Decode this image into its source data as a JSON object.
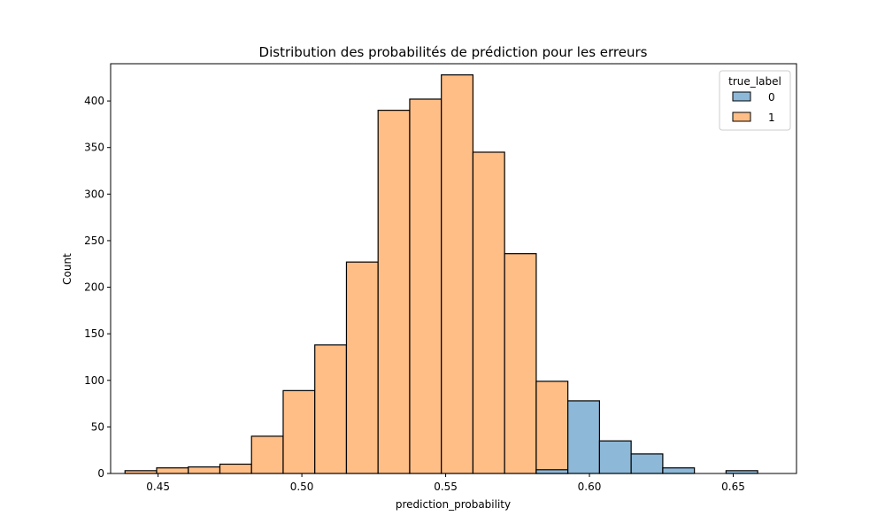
{
  "chart_data": {
    "type": "bar",
    "title": "Distribution des probabilités de prédiction pour les erreurs",
    "xlabel": "prediction_probability",
    "ylabel": "Count",
    "xlim": [
      0.4335,
      0.672
    ],
    "ylim": [
      0,
      440
    ],
    "xticks": [
      "0.45",
      "0.50",
      "0.55",
      "0.60",
      "0.65"
    ],
    "xtick_values": [
      0.45,
      0.5,
      0.55,
      0.6,
      0.65
    ],
    "yticks": [
      "0",
      "50",
      "100",
      "150",
      "200",
      "250",
      "300",
      "350",
      "400"
    ],
    "ytick_values": [
      0,
      50,
      100,
      150,
      200,
      250,
      300,
      350,
      400
    ],
    "grid": false,
    "legend": {
      "title": "true_label",
      "placement": "top-right",
      "entries": [
        {
          "label": "0",
          "color": "#8db8d8"
        },
        {
          "label": "1",
          "color": "#ffbe86"
        }
      ]
    },
    "bin_edges": [
      0.4385,
      0.4495,
      0.4605,
      0.4715,
      0.4825,
      0.4935,
      0.5045,
      0.5155,
      0.5265,
      0.5375,
      0.5485,
      0.5595,
      0.5705,
      0.5815,
      0.5925,
      0.6035,
      0.6145,
      0.6255,
      0.6365,
      0.6475,
      0.6585
    ],
    "series": [
      {
        "name": "1",
        "color": "#ffbe86",
        "values": [
          3,
          6,
          7,
          10,
          40,
          89,
          138,
          227,
          390,
          402,
          428,
          345,
          236,
          99,
          0,
          0,
          0,
          0,
          0,
          0
        ]
      },
      {
        "name": "0",
        "color": "#8db8d8",
        "values": [
          0,
          0,
          0,
          0,
          0,
          0,
          0,
          0,
          0,
          0,
          0,
          0,
          0,
          4,
          78,
          35,
          21,
          6,
          0,
          3
        ]
      }
    ]
  }
}
